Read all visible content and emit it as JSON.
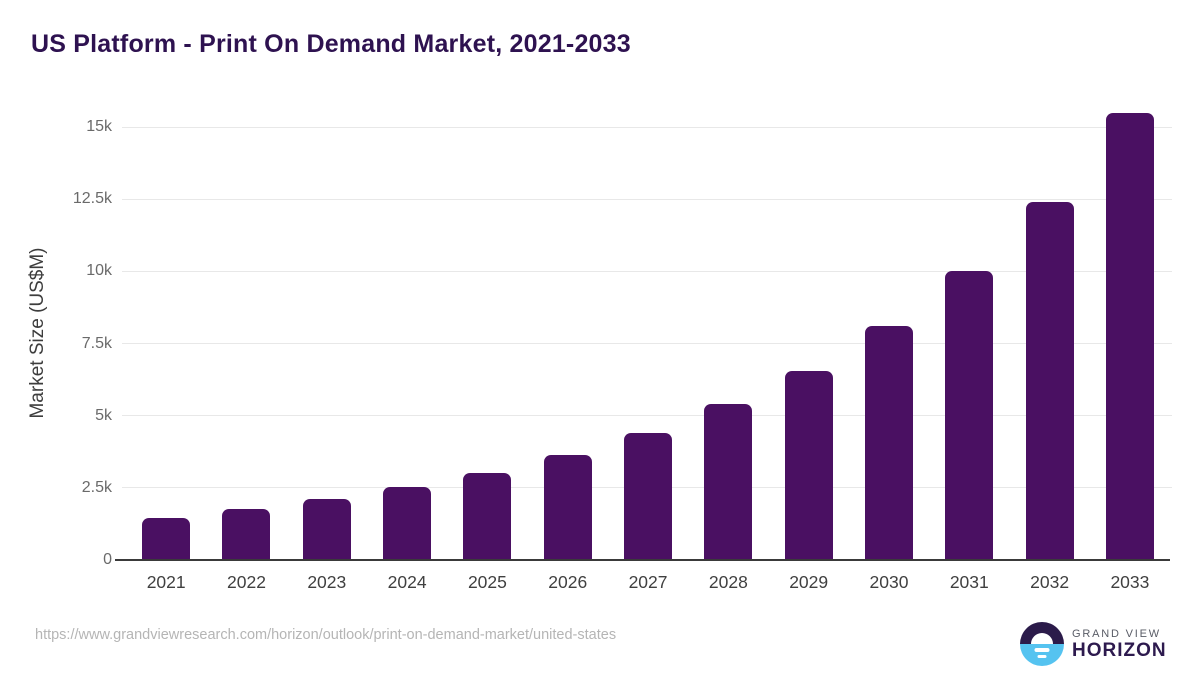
{
  "header": {
    "title": "US Platform - Print On Demand Market, 2021-2033"
  },
  "footer": {
    "source_url": "https://www.grandviewresearch.com/horizon/outlook/print-on-demand-market/united-states",
    "logo": {
      "brand_line1": "GRAND VIEW",
      "brand_line2": "HORIZON"
    }
  },
  "colors": {
    "bar": "#4a1062",
    "title_text": "#2e1250",
    "gridline": "#e8e8e8",
    "axis_line": "#3a3a3a",
    "y_tick_text": "#6a6a6a",
    "x_tick_text": "#404040",
    "url_text": "#b5b5b5",
    "logo_top_half": "#2b1b4a",
    "logo_bottom_half": "#55c3f0",
    "logo_brand_top": "#595c66",
    "logo_brand_bottom": "#2d1a4e"
  },
  "chart_data": {
    "type": "bar",
    "title": "US Platform - Print On Demand Market, 2021-2033",
    "categories": [
      "2021",
      "2022",
      "2023",
      "2024",
      "2025",
      "2026",
      "2027",
      "2028",
      "2029",
      "2030",
      "2031",
      "2032",
      "2033"
    ],
    "values": [
      1450,
      1750,
      2100,
      2520,
      3020,
      3650,
      4400,
      5400,
      6550,
      8100,
      10000,
      12400,
      15500
    ],
    "xlabel": "",
    "ylabel": "Market Size (US$M)",
    "ylim": [
      0,
      15500
    ],
    "yticks": [
      {
        "label": "0",
        "value": 0
      },
      {
        "label": "2.5k",
        "value": 2500
      },
      {
        "label": "5k",
        "value": 5000
      },
      {
        "label": "7.5k",
        "value": 7500
      },
      {
        "label": "10k",
        "value": 10000
      },
      {
        "label": "12.5k",
        "value": 12500
      },
      {
        "label": "15k",
        "value": 15000
      }
    ],
    "grid": "horizontal",
    "legend": "none",
    "bar_color": "#4a1062"
  }
}
